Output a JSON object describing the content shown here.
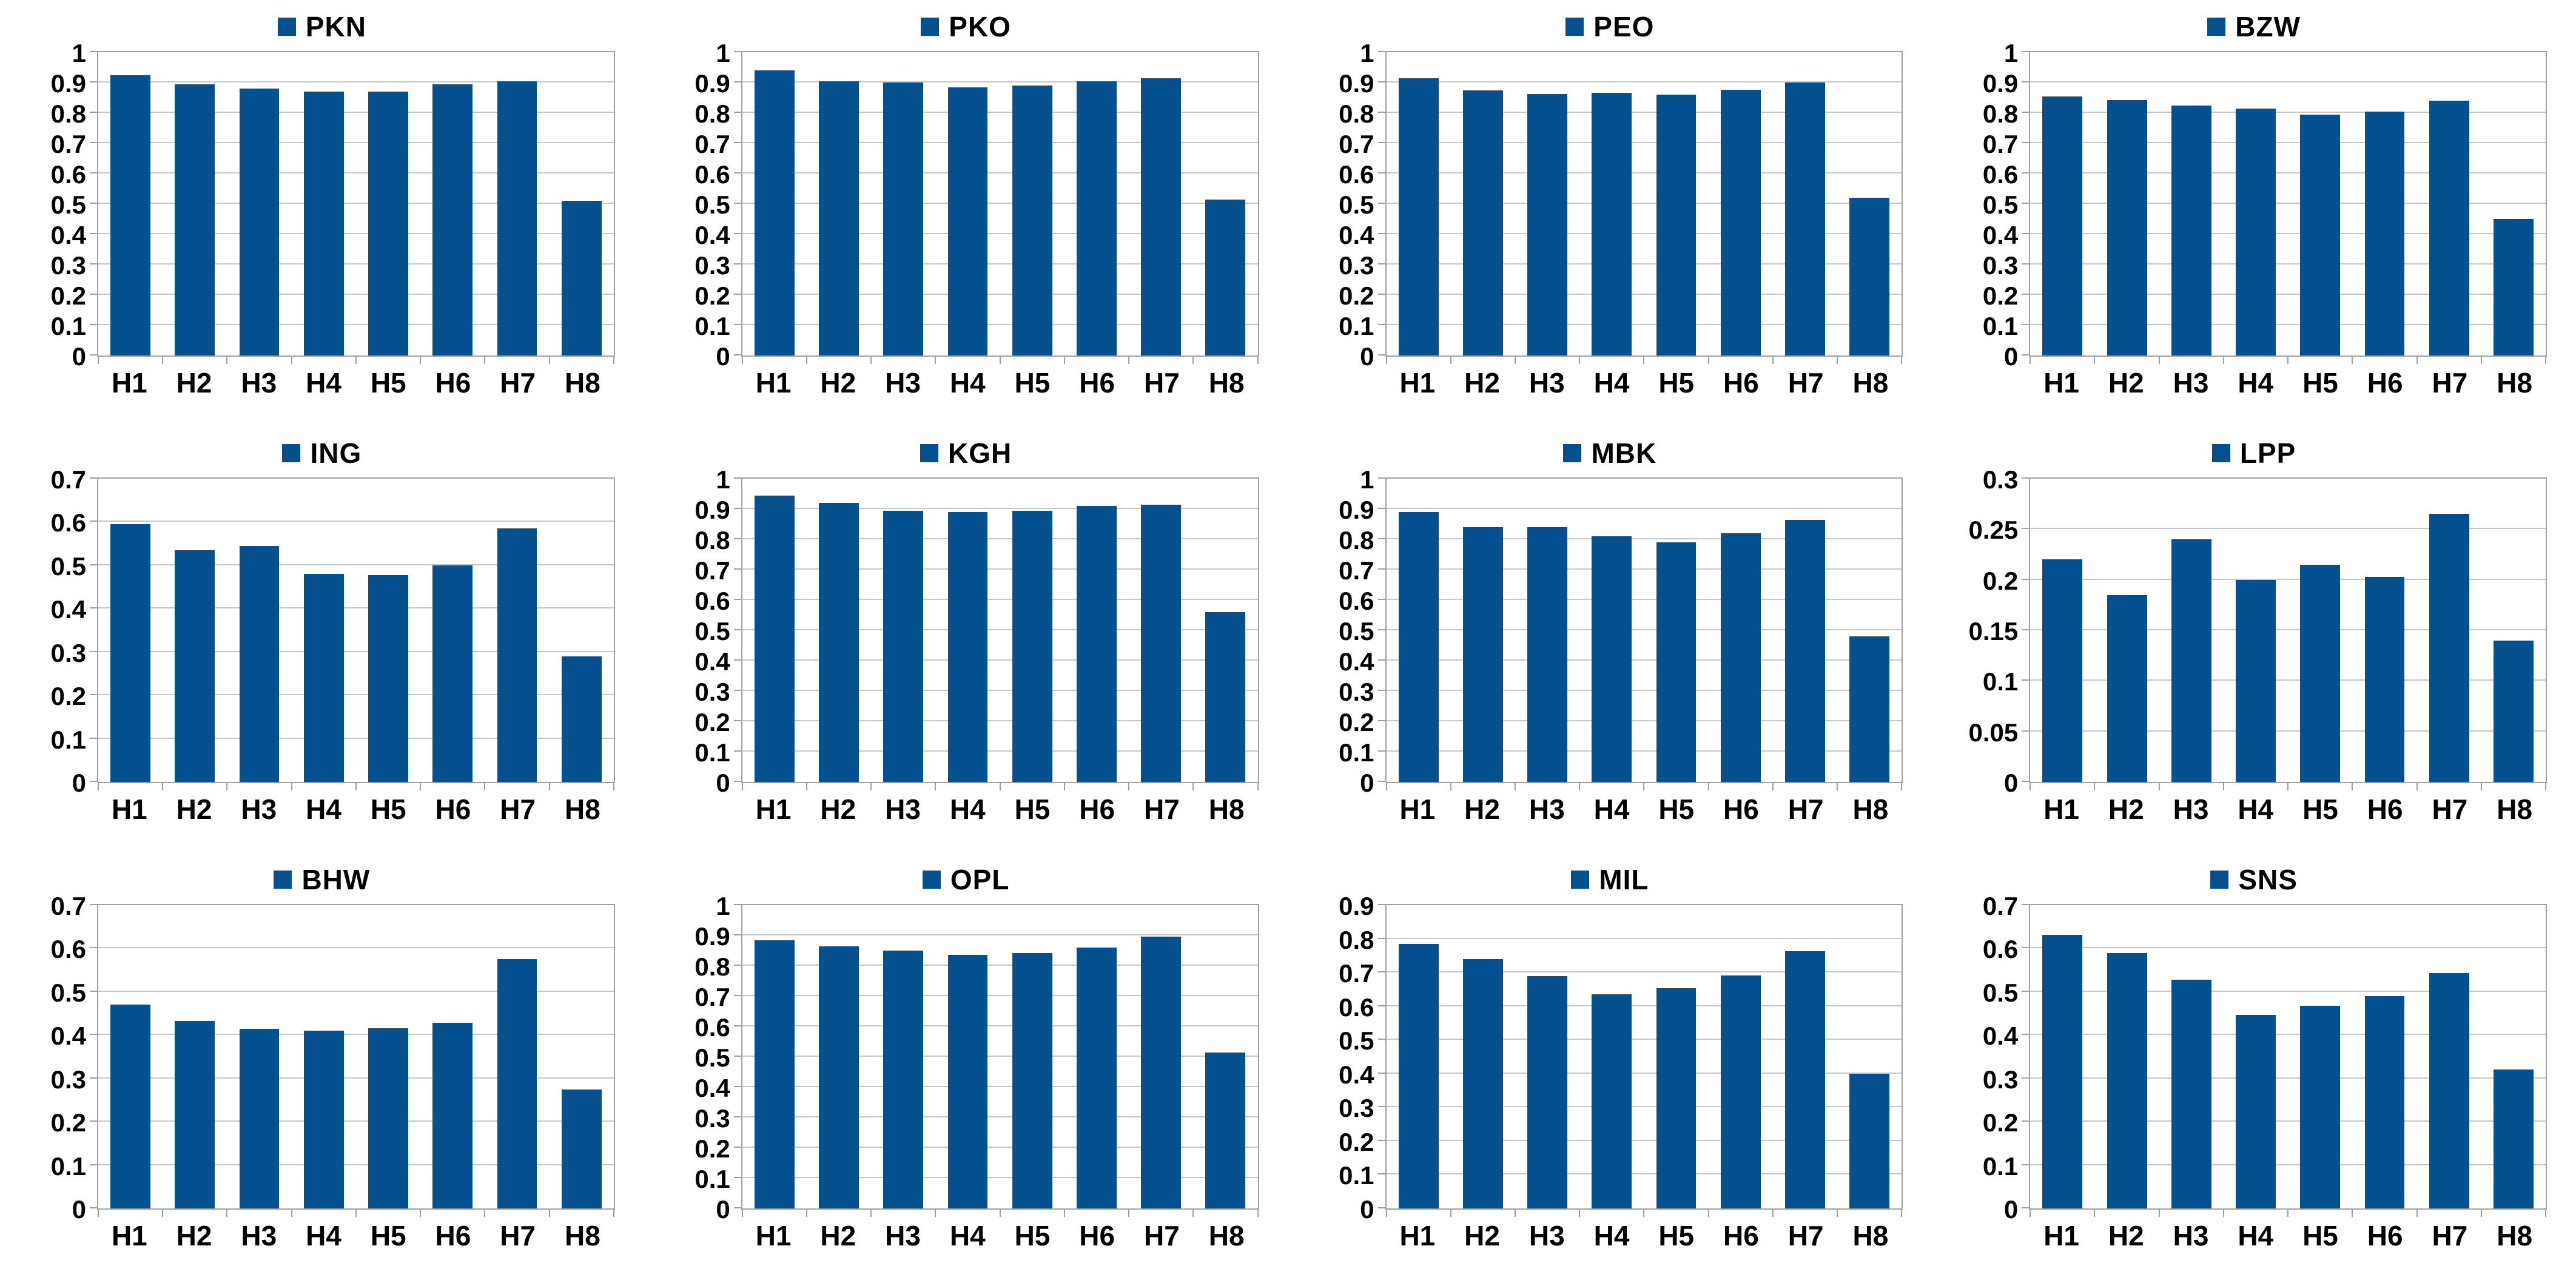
{
  "colors": {
    "bar": "#05508F",
    "gridline": "#C8C8C8",
    "plot_border": "#A0A0A0",
    "text": "#000000",
    "background": "#FFFFFF"
  },
  "chart_data": [
    {
      "type": "bar",
      "title": "PKN",
      "categories": [
        "H1",
        "H2",
        "H3",
        "H4",
        "H5",
        "H6",
        "H7",
        "H8"
      ],
      "values": [
        0.925,
        0.895,
        0.88,
        0.87,
        0.87,
        0.895,
        0.905,
        0.51
      ],
      "ylim": [
        0,
        1
      ],
      "ystep": 0.1,
      "yticks": [
        "1",
        "0.9",
        "0.8",
        "0.7",
        "0.6",
        "0.5",
        "0.4",
        "0.3",
        "0.2",
        "0.1",
        "0"
      ],
      "grid": true,
      "legend_position": "top"
    },
    {
      "type": "bar",
      "title": "PKO",
      "categories": [
        "H1",
        "H2",
        "H3",
        "H4",
        "H5",
        "H6",
        "H7",
        "H8"
      ],
      "values": [
        0.94,
        0.905,
        0.9,
        0.885,
        0.89,
        0.905,
        0.915,
        0.515
      ],
      "ylim": [
        0,
        1
      ],
      "ystep": 0.1,
      "yticks": [
        "1",
        "0.9",
        "0.8",
        "0.7",
        "0.6",
        "0.5",
        "0.4",
        "0.3",
        "0.2",
        "0.1",
        "0"
      ],
      "grid": true,
      "legend_position": "top"
    },
    {
      "type": "bar",
      "title": "PEO",
      "categories": [
        "H1",
        "H2",
        "H3",
        "H4",
        "H5",
        "H6",
        "H7",
        "H8"
      ],
      "values": [
        0.915,
        0.875,
        0.862,
        0.866,
        0.86,
        0.876,
        0.9,
        0.52
      ],
      "ylim": [
        0,
        1
      ],
      "ystep": 0.1,
      "yticks": [
        "1",
        "0.9",
        "0.8",
        "0.7",
        "0.6",
        "0.5",
        "0.4",
        "0.3",
        "0.2",
        "0.1",
        "0"
      ],
      "grid": true,
      "legend_position": "top"
    },
    {
      "type": "bar",
      "title": "BZW",
      "categories": [
        "H1",
        "H2",
        "H3",
        "H4",
        "H5",
        "H6",
        "H7",
        "H8"
      ],
      "values": [
        0.855,
        0.842,
        0.825,
        0.815,
        0.795,
        0.805,
        0.84,
        0.45
      ],
      "ylim": [
        0,
        1
      ],
      "ystep": 0.1,
      "yticks": [
        "1",
        "0.9",
        "0.8",
        "0.7",
        "0.6",
        "0.5",
        "0.4",
        "0.3",
        "0.2",
        "0.1",
        "0"
      ],
      "grid": true,
      "legend_position": "top"
    },
    {
      "type": "bar",
      "title": "ING",
      "categories": [
        "H1",
        "H2",
        "H3",
        "H4",
        "H5",
        "H6",
        "H7",
        "H8"
      ],
      "values": [
        0.595,
        0.535,
        0.545,
        0.48,
        0.478,
        0.5,
        0.585,
        0.29
      ],
      "ylim": [
        0,
        0.7
      ],
      "ystep": 0.1,
      "yticks": [
        "0.7",
        "0.6",
        "0.5",
        "0.4",
        "0.3",
        "0.2",
        "0.1",
        "0"
      ],
      "grid": true,
      "legend_position": "top"
    },
    {
      "type": "bar",
      "title": "KGH",
      "categories": [
        "H1",
        "H2",
        "H3",
        "H4",
        "H5",
        "H6",
        "H7",
        "H8"
      ],
      "values": [
        0.945,
        0.92,
        0.895,
        0.89,
        0.895,
        0.91,
        0.915,
        0.56
      ],
      "ylim": [
        0,
        1
      ],
      "ystep": 0.1,
      "yticks": [
        "1",
        "0.9",
        "0.8",
        "0.7",
        "0.6",
        "0.5",
        "0.4",
        "0.3",
        "0.2",
        "0.1",
        "0"
      ],
      "grid": true,
      "legend_position": "top"
    },
    {
      "type": "bar",
      "title": "MBK",
      "categories": [
        "H1",
        "H2",
        "H3",
        "H4",
        "H5",
        "H6",
        "H7",
        "H8"
      ],
      "values": [
        0.89,
        0.84,
        0.84,
        0.81,
        0.79,
        0.82,
        0.865,
        0.48
      ],
      "ylim": [
        0,
        1
      ],
      "ystep": 0.1,
      "yticks": [
        "1",
        "0.9",
        "0.8",
        "0.7",
        "0.6",
        "0.5",
        "0.4",
        "0.3",
        "0.2",
        "0.1",
        "0"
      ],
      "grid": true,
      "legend_position": "top"
    },
    {
      "type": "bar",
      "title": "LPP",
      "categories": [
        "H1",
        "H2",
        "H3",
        "H4",
        "H5",
        "H6",
        "H7",
        "H8"
      ],
      "values": [
        0.22,
        0.185,
        0.24,
        0.2,
        0.215,
        0.203,
        0.265,
        0.14
      ],
      "ylim": [
        0,
        0.3
      ],
      "ystep": 0.05,
      "yticks": [
        "0.3",
        "0.25",
        "0.2",
        "0.15",
        "0.1",
        "0.05",
        "0"
      ],
      "grid": true,
      "legend_position": "top"
    },
    {
      "type": "bar",
      "title": "BHW",
      "categories": [
        "H1",
        "H2",
        "H3",
        "H4",
        "H5",
        "H6",
        "H7",
        "H8"
      ],
      "values": [
        0.47,
        0.432,
        0.415,
        0.41,
        0.416,
        0.428,
        0.575,
        0.275
      ],
      "ylim": [
        0,
        0.7
      ],
      "ystep": 0.1,
      "yticks": [
        "0.7",
        "0.6",
        "0.5",
        "0.4",
        "0.3",
        "0.2",
        "0.1",
        "0"
      ],
      "grid": true,
      "legend_position": "top"
    },
    {
      "type": "bar",
      "title": "OPL",
      "categories": [
        "H1",
        "H2",
        "H3",
        "H4",
        "H5",
        "H6",
        "H7",
        "H8"
      ],
      "values": [
        0.885,
        0.865,
        0.85,
        0.837,
        0.843,
        0.86,
        0.897,
        0.515
      ],
      "ylim": [
        0,
        1
      ],
      "ystep": 0.1,
      "yticks": [
        "1",
        "0.9",
        "0.8",
        "0.7",
        "0.6",
        "0.5",
        "0.4",
        "0.3",
        "0.2",
        "0.1",
        "0"
      ],
      "grid": true,
      "legend_position": "top"
    },
    {
      "type": "bar",
      "title": "MIL",
      "categories": [
        "H1",
        "H2",
        "H3",
        "H4",
        "H5",
        "H6",
        "H7",
        "H8"
      ],
      "values": [
        0.785,
        0.74,
        0.69,
        0.635,
        0.653,
        0.692,
        0.763,
        0.4
      ],
      "ylim": [
        0,
        0.9
      ],
      "ystep": 0.1,
      "yticks": [
        "0.9",
        "0.8",
        "0.7",
        "0.6",
        "0.5",
        "0.4",
        "0.3",
        "0.2",
        "0.1",
        "0"
      ],
      "grid": true,
      "legend_position": "top"
    },
    {
      "type": "bar",
      "title": "SNS",
      "categories": [
        "H1",
        "H2",
        "H3",
        "H4",
        "H5",
        "H6",
        "H7",
        "H8"
      ],
      "values": [
        0.632,
        0.59,
        0.528,
        0.447,
        0.468,
        0.49,
        0.543,
        0.32
      ],
      "ylim": [
        0,
        0.7
      ],
      "ystep": 0.1,
      "yticks": [
        "0.7",
        "0.6",
        "0.5",
        "0.4",
        "0.3",
        "0.2",
        "0.1",
        "0"
      ],
      "grid": true,
      "legend_position": "top"
    }
  ]
}
